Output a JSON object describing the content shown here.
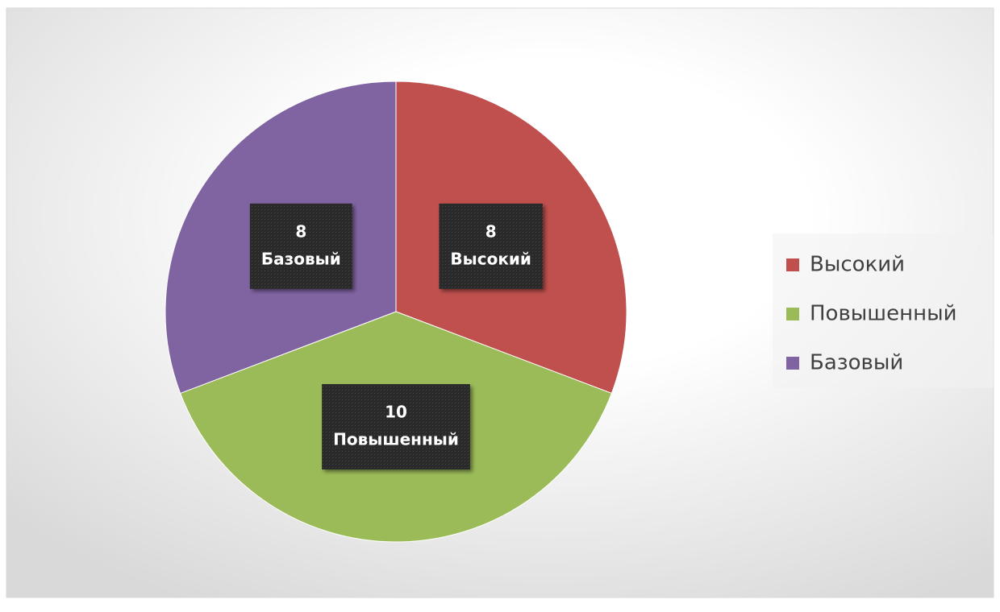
{
  "chart_data": {
    "type": "pie",
    "categories": [
      "Высокий",
      "Повышенный",
      "Базовый"
    ],
    "values": [
      8,
      10,
      8
    ],
    "colors": [
      "#c0504d",
      "#9bbb59",
      "#8064a2"
    ],
    "legend": "right",
    "data_labels": true
  }
}
